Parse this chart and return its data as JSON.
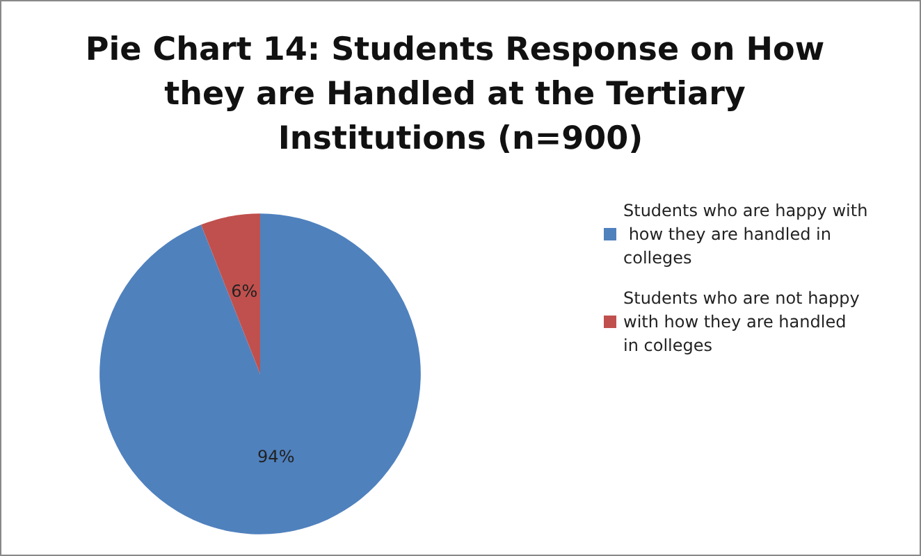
{
  "chart_data": {
    "type": "pie",
    "title": "Pie Chart 14: Students Response on How they are Handled at the Tertiary Institutions (n=900)",
    "categories": [
      "Students who are happy with how they are handled in colleges",
      "Students who are not happy with how they are handled in colleges"
    ],
    "values": [
      94,
      6
    ],
    "colors": [
      "#4f81bd",
      "#c0504d"
    ],
    "value_labels": [
      "94%",
      "6%"
    ],
    "legend": "right"
  }
}
